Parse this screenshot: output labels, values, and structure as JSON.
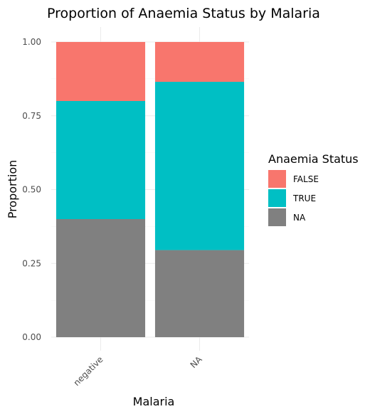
{
  "chart_data": {
    "type": "bar",
    "stacked": true,
    "title": "Proportion of Anaemia Status by Malaria",
    "xlabel": "Malaria",
    "ylabel": "Proportion",
    "categories": [
      "negative",
      "NA"
    ],
    "ylim": [
      0,
      1
    ],
    "yticks": [
      "0.00",
      "0.25",
      "0.50",
      "0.75",
      "1.00"
    ],
    "ytick_values": [
      0,
      0.25,
      0.5,
      0.75,
      1.0
    ],
    "legend": {
      "title": "Anaemia Status",
      "position": "right"
    },
    "series": [
      {
        "name": "FALSE",
        "color": "#F8766D",
        "values": [
          0.2,
          0.135
        ]
      },
      {
        "name": "TRUE",
        "color": "#00BFC4",
        "values": [
          0.4,
          0.57
        ]
      },
      {
        "name": "NA",
        "color": "#808080",
        "values": [
          0.4,
          0.295
        ]
      }
    ],
    "grid": true
  }
}
